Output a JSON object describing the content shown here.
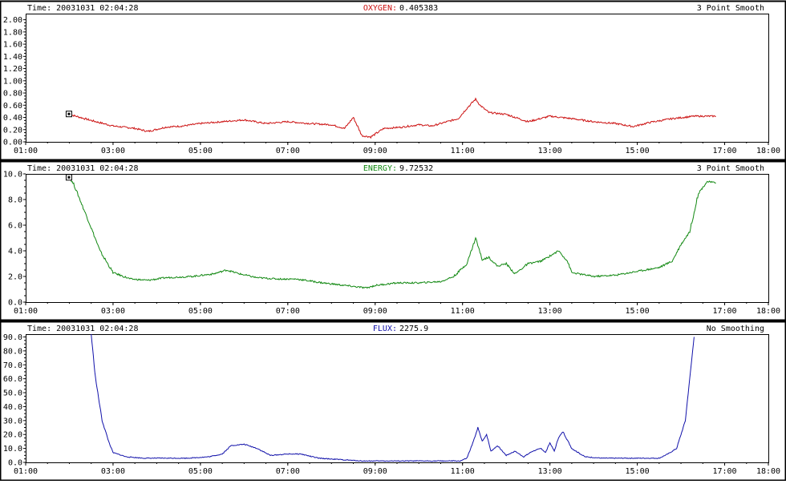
{
  "panels": [
    {
      "time_label": "Time:",
      "time_value": "20031031 02:04:28",
      "series_label": "OXYGEN:",
      "series_value": "0.405383",
      "smoothing": "3 Point Smooth",
      "color": "#cc1111"
    },
    {
      "time_label": "Time:",
      "time_value": "20031031 02:04:28",
      "series_label": "ENERGY:",
      "series_value": "9.72532",
      "smoothing": "3 Point Smooth",
      "color": "#118811"
    },
    {
      "time_label": "Time:",
      "time_value": "20031031 02:04:28",
      "series_label": "FLUX:",
      "series_value": "2275.9",
      "smoothing": "No Smoothing",
      "color": "#1111aa"
    }
  ],
  "chart_data": [
    {
      "type": "line",
      "series_name": "OXYGEN",
      "x_ticks": [
        "01:00",
        "03:00",
        "05:00",
        "07:00",
        "09:00",
        "11:00",
        "13:00",
        "15:00",
        "17:00",
        "18:00"
      ],
      "y_ticks": [
        "0.00",
        "0.20",
        "0.40",
        "0.60",
        "0.80",
        "1.00",
        "1.20",
        "1.40",
        "1.60",
        "1.80",
        "2.00"
      ],
      "ylim": [
        0,
        2.1
      ],
      "x": [
        2.0,
        2.5,
        3.0,
        3.5,
        3.8,
        4.2,
        4.6,
        5.0,
        5.5,
        6.0,
        6.5,
        7.0,
        7.5,
        8.0,
        8.3,
        8.5,
        8.7,
        8.9,
        9.2,
        9.6,
        10.0,
        10.3,
        10.6,
        10.9,
        11.1,
        11.3,
        11.4,
        11.6,
        12.0,
        12.5,
        13.0,
        13.5,
        14.0,
        14.5,
        14.9,
        15.3,
        15.8,
        16.3,
        16.8
      ],
      "values": [
        0.45,
        0.35,
        0.26,
        0.22,
        0.17,
        0.24,
        0.26,
        0.3,
        0.33,
        0.36,
        0.3,
        0.33,
        0.3,
        0.28,
        0.22,
        0.4,
        0.1,
        0.08,
        0.22,
        0.24,
        0.28,
        0.26,
        0.32,
        0.38,
        0.55,
        0.7,
        0.6,
        0.48,
        0.45,
        0.33,
        0.42,
        0.38,
        0.33,
        0.3,
        0.25,
        0.32,
        0.38,
        0.42,
        0.42
      ]
    },
    {
      "type": "line",
      "series_name": "ENERGY",
      "x_ticks": [
        "01:00",
        "03:00",
        "05:00",
        "07:00",
        "09:00",
        "11:00",
        "13:00",
        "15:00",
        "17:00",
        "18:00"
      ],
      "y_ticks": [
        "0.0",
        "2.0",
        "4.0",
        "6.0",
        "8.0",
        "10.0"
      ],
      "ylim": [
        0,
        10
      ],
      "x": [
        2.0,
        2.1,
        2.3,
        2.5,
        2.7,
        3.0,
        3.4,
        3.8,
        4.2,
        4.8,
        5.3,
        5.6,
        5.9,
        6.3,
        6.8,
        7.2,
        7.8,
        8.3,
        8.8,
        9.0,
        9.5,
        10.0,
        10.5,
        10.8,
        11.1,
        11.3,
        11.45,
        11.6,
        11.8,
        12.0,
        12.2,
        12.5,
        12.8,
        13.0,
        13.2,
        13.4,
        13.5,
        14.0,
        14.5,
        15.0,
        15.5,
        15.8,
        16.0,
        16.2,
        16.4,
        16.6,
        16.8
      ],
      "values": [
        9.7,
        9.2,
        7.5,
        5.8,
        4.0,
        2.3,
        1.8,
        1.7,
        1.9,
        2.0,
        2.2,
        2.5,
        2.2,
        1.9,
        1.8,
        1.8,
        1.5,
        1.3,
        1.1,
        1.3,
        1.5,
        1.5,
        1.6,
        2.0,
        3.0,
        5.0,
        3.3,
        3.5,
        2.8,
        3.0,
        2.2,
        3.0,
        3.2,
        3.6,
        4.0,
        3.2,
        2.3,
        2.0,
        2.1,
        2.4,
        2.7,
        3.2,
        4.5,
        5.5,
        8.5,
        9.4,
        9.3
      ]
    },
    {
      "type": "line",
      "series_name": "FLUX",
      "x_ticks": [
        "01:00",
        "03:00",
        "05:00",
        "07:00",
        "09:00",
        "11:00",
        "13:00",
        "15:00",
        "17:00",
        "18:00"
      ],
      "y_ticks": [
        "0.0",
        "10.0",
        "20.0",
        "30.0",
        "40.0",
        "50.0",
        "60.0",
        "70.0",
        "80.0",
        "90.0"
      ],
      "ylim": [
        0,
        92
      ],
      "x": [
        2.5,
        2.6,
        2.75,
        2.9,
        3.0,
        3.3,
        3.7,
        4.2,
        4.7,
        5.2,
        5.5,
        5.7,
        6.0,
        6.3,
        6.6,
        7.0,
        7.3,
        7.7,
        8.2,
        8.7,
        9.2,
        9.7,
        10.2,
        10.7,
        10.95,
        11.1,
        11.25,
        11.35,
        11.45,
        11.55,
        11.65,
        11.8,
        12.0,
        12.2,
        12.4,
        12.6,
        12.8,
        12.9,
        13.0,
        13.1,
        13.2,
        13.3,
        13.5,
        13.8,
        14.2,
        14.7,
        15.2,
        15.5,
        15.7,
        15.9,
        16.0,
        16.1,
        16.2,
        16.3
      ],
      "values": [
        92,
        60,
        30,
        15,
        7,
        4,
        3,
        3,
        3,
        4,
        6,
        12,
        13,
        10,
        5,
        6,
        6,
        3,
        2,
        1,
        1,
        1,
        1,
        1,
        1,
        3,
        15,
        25,
        15,
        20,
        8,
        12,
        5,
        8,
        4,
        8,
        10,
        7,
        14,
        8,
        18,
        22,
        10,
        4,
        3,
        3,
        3,
        3,
        6,
        10,
        20,
        30,
        60,
        90
      ]
    }
  ]
}
